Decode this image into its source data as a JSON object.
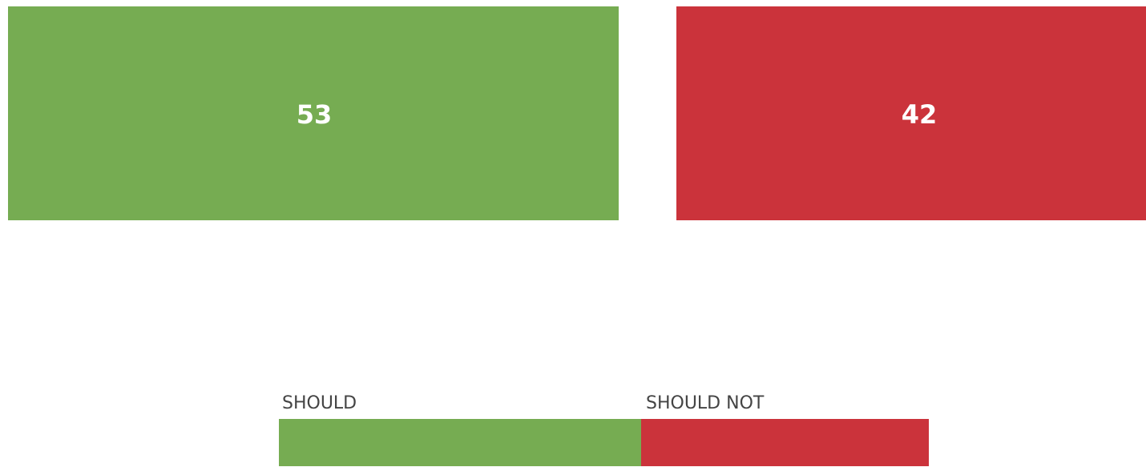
{
  "chart_data": {
    "type": "bar",
    "categories": [
      "SHOULD",
      "SHOULD NOT"
    ],
    "values": [
      53,
      42
    ],
    "colors": [
      "#76ac52",
      "#cb333b"
    ],
    "legend_position": "bottom-center"
  }
}
